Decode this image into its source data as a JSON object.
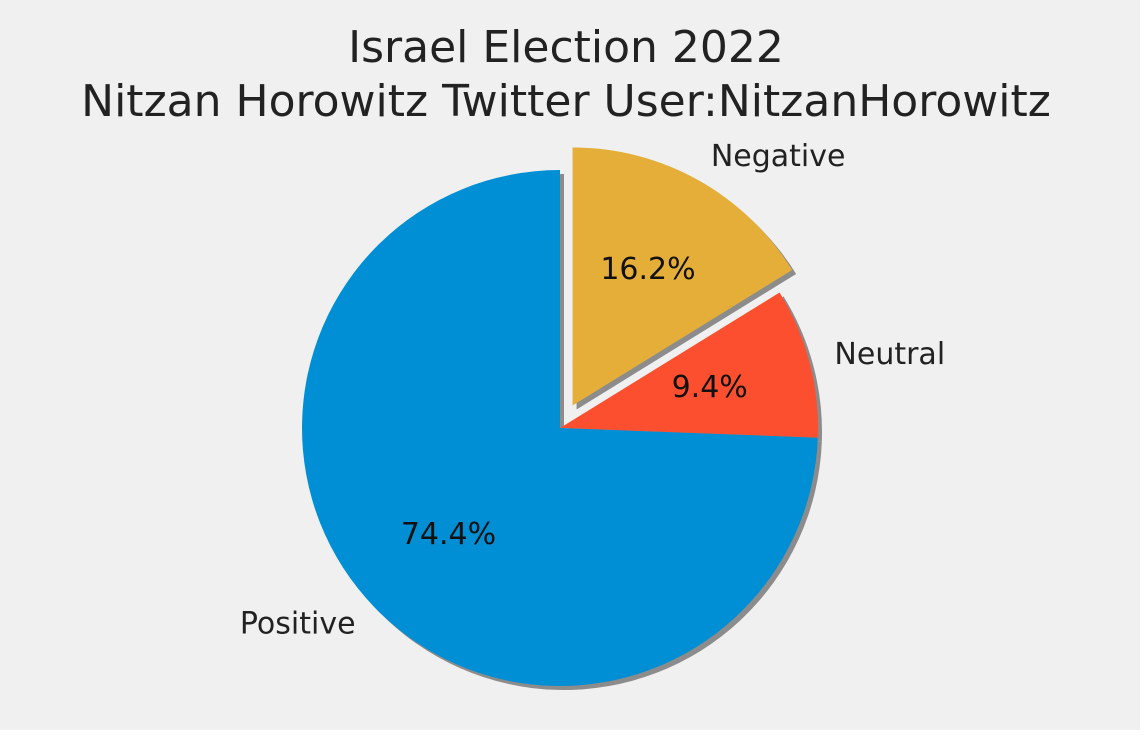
{
  "chart_data": {
    "type": "pie",
    "title": [
      "Israel Election 2022",
      "Nitzan Horowitz Twitter User:NitzanHorowitz"
    ],
    "slices": [
      {
        "label": "Negative",
        "value": 16.2,
        "pct_label": "16.2%",
        "color": "#e5ae38",
        "explode": true
      },
      {
        "label": "Neutral",
        "value": 9.4,
        "pct_label": "9.4%",
        "color": "#fc4f30",
        "explode": false
      },
      {
        "label": "Positive",
        "value": 74.4,
        "pct_label": "74.4%",
        "color": "#008fd5",
        "explode": false
      }
    ],
    "start_angle_deg": 90,
    "direction": "clockwise",
    "shadow": true
  },
  "colors": {
    "background": "#f0f0f0",
    "shadow": "#7a7a7a"
  }
}
